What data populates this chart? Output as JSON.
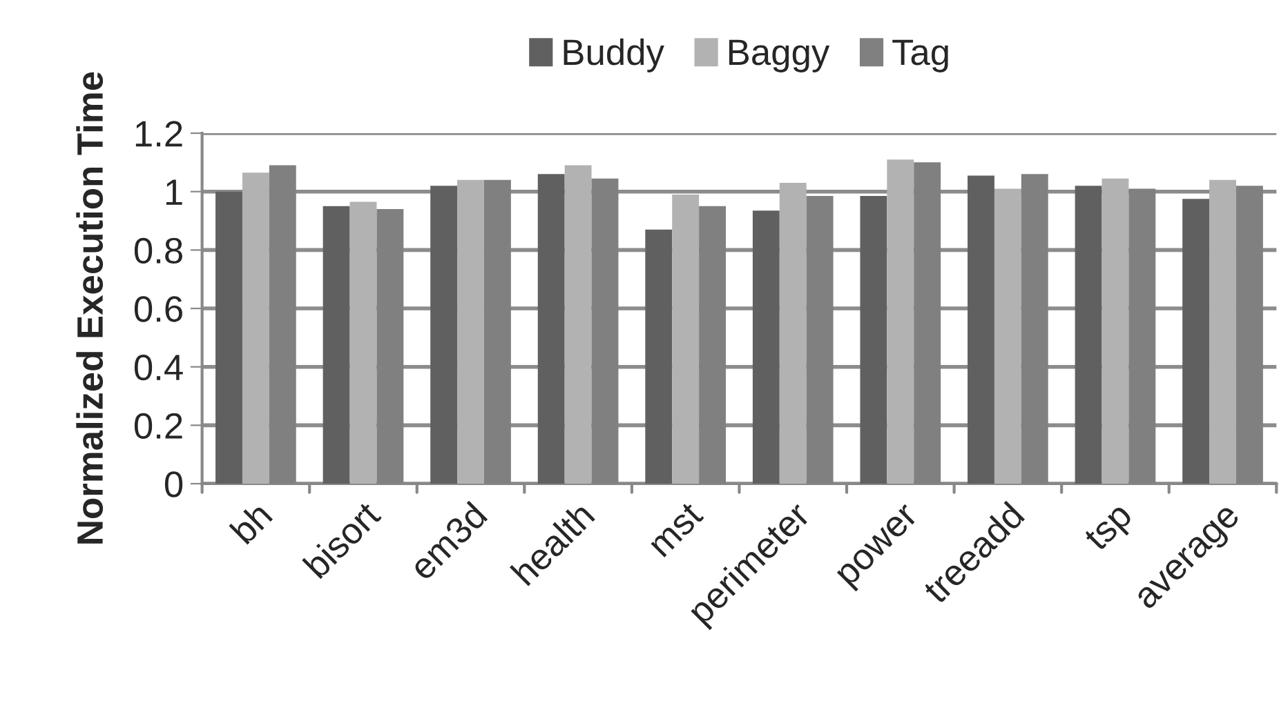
{
  "chart_data": {
    "type": "bar",
    "ylabel": "Normalized Execution Time",
    "categories": [
      "bh",
      "bisort",
      "em3d",
      "health",
      "mst",
      "perimeter",
      "power",
      "treeadd",
      "tsp",
      "average"
    ],
    "series": [
      {
        "name": "Buddy",
        "color": "#606060",
        "values": [
          1.0,
          0.95,
          1.02,
          1.06,
          0.87,
          0.935,
          0.985,
          1.055,
          1.02,
          0.975
        ]
      },
      {
        "name": "Baggy",
        "color": "#b2b2b2",
        "values": [
          1.065,
          0.965,
          1.04,
          1.09,
          0.99,
          1.03,
          1.11,
          1.01,
          1.045,
          1.04
        ]
      },
      {
        "name": "Tag",
        "color": "#808080",
        "values": [
          1.09,
          0.94,
          1.04,
          1.045,
          0.95,
          0.985,
          1.1,
          1.06,
          1.01,
          1.02
        ]
      }
    ],
    "ylim": [
      0,
      1.2
    ],
    "yticks": [
      0,
      0.2,
      0.4,
      0.6,
      0.8,
      1,
      1.2
    ],
    "grid": "y",
    "legend": "top"
  }
}
